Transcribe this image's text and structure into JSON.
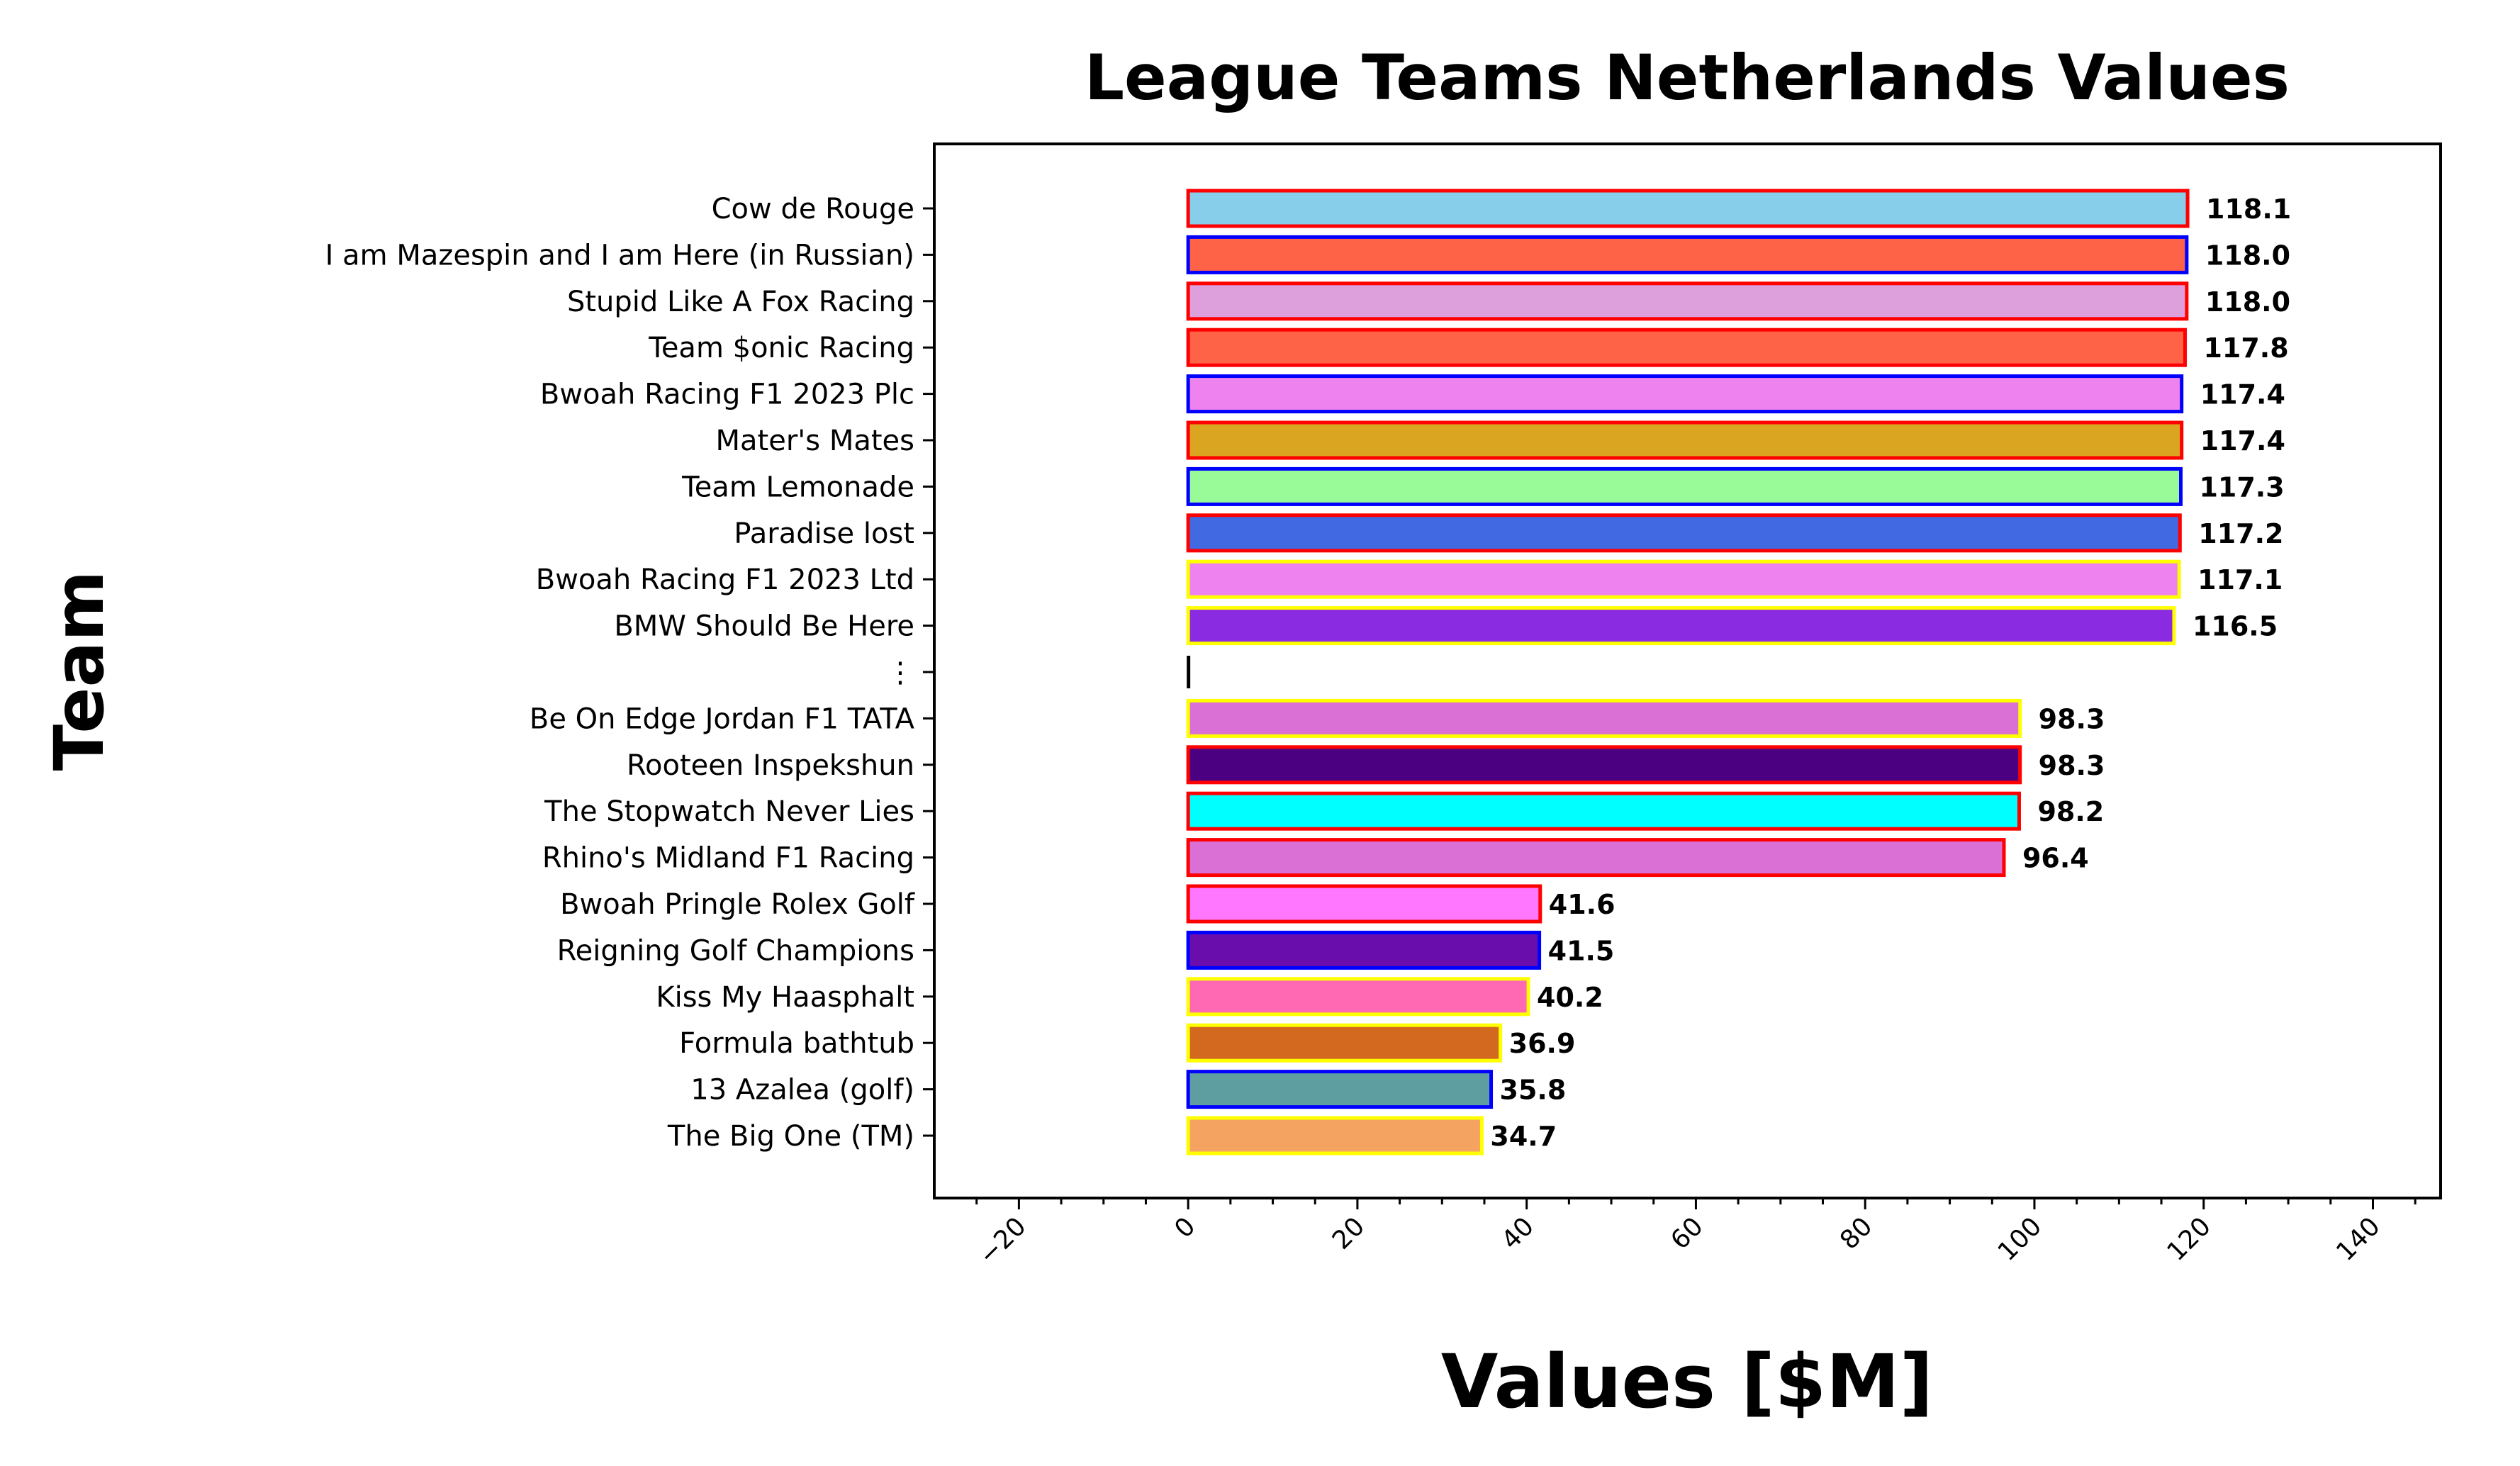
{
  "chart_data": {
    "type": "bar",
    "orientation": "horizontal",
    "title": "League Teams Netherlands Values",
    "xlabel": "Values [$M]",
    "ylabel": "Team",
    "xlim": [
      -30,
      148
    ],
    "xticks": [
      -20,
      0,
      20,
      40,
      60,
      80,
      100,
      120,
      140
    ],
    "grid": false,
    "categories": [
      "Cow de Rouge",
      "I am Mazespin and I am Here (in Russian)",
      "Stupid Like A Fox Racing",
      "Team $onic Racing",
      "Bwoah Racing F1 2023 Plc",
      "Mater's Mates",
      "Team Lemonade",
      "Paradise lost",
      "Bwoah Racing F1 2023 Ltd",
      "BMW Should Be Here",
      "⋮",
      "Be On Edge Jordan F1 TATA",
      "Rooteen Inspekshun",
      "The Stopwatch Never Lies",
      "Rhino's Midland F1 Racing",
      "Bwoah Pringle Rolex Golf",
      "Reigning Golf Champions",
      "Kiss My Haasphalt",
      "Formula bathtub",
      "13 Azalea (golf)",
      "The Big One (TM)"
    ],
    "values": [
      118.1,
      118.0,
      118.0,
      117.8,
      117.4,
      117.4,
      117.3,
      117.2,
      117.1,
      116.5,
      0,
      98.3,
      98.3,
      98.2,
      96.4,
      41.6,
      41.5,
      40.2,
      36.9,
      35.8,
      34.7
    ],
    "value_labels": [
      "118.1",
      "118.0",
      "118.0",
      "117.8",
      "117.4",
      "117.4",
      "117.3",
      "117.2",
      "117.1",
      "116.5",
      "",
      "98.3",
      "98.3",
      "98.2",
      "96.4",
      "41.6",
      "41.5",
      "40.2",
      "36.9",
      "35.8",
      "34.7"
    ],
    "fill_colors": [
      "#87ceeb",
      "#ff6347",
      "#dda0dd",
      "#ff6347",
      "#ee82ee",
      "#daa520",
      "#98fb98",
      "#4169e1",
      "#ee82ee",
      "#8a2be2",
      "#000000",
      "#da70d6",
      "#4b0082",
      "#00ffff",
      "#da70d6",
      "#ff77ff",
      "#6a0dad",
      "#ff69b4",
      "#d2691e",
      "#5f9ea0",
      "#f4a460"
    ],
    "edge_colors": [
      "#ff0000",
      "#0000ff",
      "#ff0000",
      "#ff0000",
      "#0000ff",
      "#ff0000",
      "#0000ff",
      "#ff0000",
      "#ffff00",
      "#ffff00",
      "#000000",
      "#ffff00",
      "#ff0000",
      "#ff0000",
      "#ff0000",
      "#ff0000",
      "#0000ff",
      "#ffff00",
      "#ffff00",
      "#0000ff",
      "#ffff00"
    ]
  }
}
